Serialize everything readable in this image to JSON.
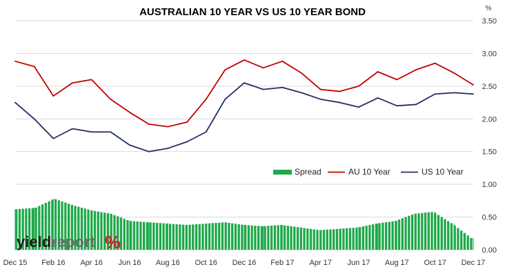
{
  "chart_data": {
    "type": "line",
    "title": "AUSTRALIAN 10 YEAR VS US 10 YEAR BOND",
    "y_unit": "%",
    "ylim": [
      0,
      3.5
    ],
    "y_ticks": [
      "0.00",
      "0.50",
      "1.00",
      "1.50",
      "2.00",
      "2.50",
      "3.00",
      "3.50"
    ],
    "x_ticks": [
      "Dec 15",
      "Feb 16",
      "Apr 16",
      "Jun 16",
      "Aug 16",
      "Oct 16",
      "Dec 16",
      "Feb 17",
      "Apr 17",
      "Jun 17",
      "Aug 17",
      "Oct 17",
      "Dec 17"
    ],
    "grid": true,
    "legend_position": "lower-right",
    "series": [
      {
        "name": "Spread",
        "type": "bar",
        "color": "#1fa84a",
        "x": [
          "Dec 15",
          "Jan 16",
          "Feb 16",
          "Mar 16",
          "Apr 16",
          "May 16",
          "Jun 16",
          "Jul 16",
          "Aug 16",
          "Sep 16",
          "Oct 16",
          "Nov 16",
          "Dec 16",
          "Jan 17",
          "Feb 17",
          "Mar 17",
          "Apr 17",
          "May 17",
          "Jun 17",
          "Jul 17",
          "Aug 17",
          "Sep 17",
          "Oct 17",
          "Nov 17",
          "Dec 17"
        ],
        "values": [
          0.62,
          0.64,
          0.78,
          0.68,
          0.6,
          0.55,
          0.44,
          0.42,
          0.4,
          0.38,
          0.4,
          0.42,
          0.38,
          0.36,
          0.38,
          0.34,
          0.3,
          0.32,
          0.34,
          0.4,
          0.44,
          0.55,
          0.58,
          0.4,
          0.18
        ]
      },
      {
        "name": "AU 10 Year",
        "type": "line",
        "color": "#c00000",
        "x": [
          "Dec 15",
          "Jan 16",
          "Feb 16",
          "Mar 16",
          "Apr 16",
          "May 16",
          "Jun 16",
          "Jul 16",
          "Aug 16",
          "Sep 16",
          "Oct 16",
          "Nov 16",
          "Dec 16",
          "Jan 17",
          "Feb 17",
          "Mar 17",
          "Apr 17",
          "May 17",
          "Jun 17",
          "Jul 17",
          "Aug 17",
          "Sep 17",
          "Oct 17",
          "Nov 17",
          "Dec 17"
        ],
        "values": [
          2.88,
          2.8,
          2.35,
          2.55,
          2.6,
          2.3,
          2.1,
          1.92,
          1.88,
          1.95,
          2.3,
          2.75,
          2.9,
          2.78,
          2.88,
          2.7,
          2.45,
          2.42,
          2.5,
          2.72,
          2.6,
          2.75,
          2.85,
          2.7,
          2.52
        ]
      },
      {
        "name": "US 10 Year",
        "type": "line",
        "color": "#1f2d63",
        "x": [
          "Dec 15",
          "Jan 16",
          "Feb 16",
          "Mar 16",
          "Apr 16",
          "May 16",
          "Jun 16",
          "Jul 16",
          "Aug 16",
          "Sep 16",
          "Oct 16",
          "Nov 16",
          "Dec 16",
          "Jan 17",
          "Feb 17",
          "Mar 17",
          "Apr 17",
          "May 17",
          "Jun 17",
          "Jul 17",
          "Aug 17",
          "Sep 17",
          "Oct 17",
          "Nov 17",
          "Dec 17"
        ],
        "values": [
          2.25,
          2.0,
          1.7,
          1.85,
          1.8,
          1.8,
          1.6,
          1.5,
          1.55,
          1.65,
          1.8,
          2.3,
          2.55,
          2.45,
          2.48,
          2.4,
          2.3,
          2.25,
          2.18,
          2.32,
          2.2,
          2.22,
          2.38,
          2.4,
          2.38
        ]
      }
    ]
  },
  "legend": {
    "spread_label": "Spread",
    "au_label": "AU 10 Year",
    "us_label": "US 10 Year"
  },
  "logo": {
    "part1": "yield",
    "part2": "report",
    "pct": "%"
  }
}
